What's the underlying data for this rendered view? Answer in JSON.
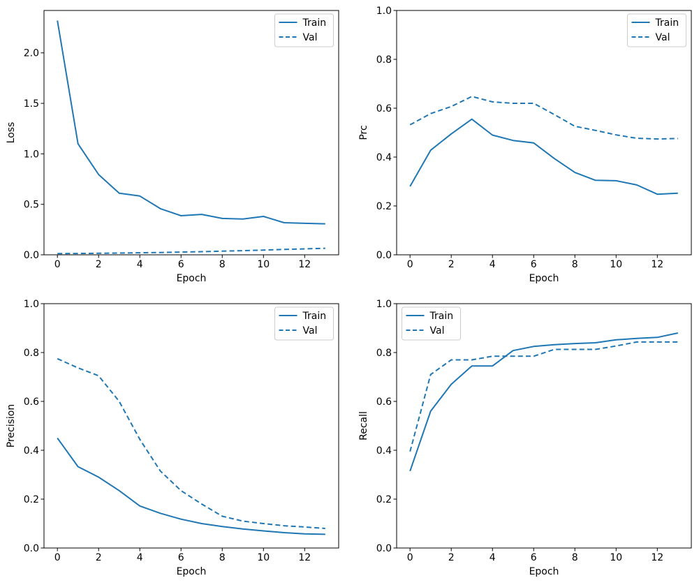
{
  "figure": {
    "background": "#ffffff",
    "text_color": "#000000",
    "accent_color": "#1f77b4",
    "legend_border_color": "#cccccc"
  },
  "chart_data": [
    {
      "id": "loss",
      "type": "line",
      "title": "",
      "xlabel": "Epoch",
      "ylabel": "Loss",
      "x": [
        0,
        1,
        2,
        3,
        4,
        5,
        6,
        7,
        8,
        9,
        10,
        11,
        12,
        13
      ],
      "series": [
        {
          "name": "Train",
          "style": "solid",
          "values": [
            2.32,
            1.1,
            0.795,
            0.61,
            0.582,
            0.457,
            0.387,
            0.4,
            0.36,
            0.355,
            0.38,
            0.318,
            0.312,
            0.307
          ]
        },
        {
          "name": "Val",
          "style": "dashed",
          "values": [
            0.012,
            0.013,
            0.015,
            0.017,
            0.02,
            0.023,
            0.027,
            0.031,
            0.036,
            0.041,
            0.047,
            0.053,
            0.059,
            0.065
          ]
        }
      ],
      "xlim": [
        -0.65,
        13.65
      ],
      "ylim": [
        0,
        2.42
      ],
      "xtick_values": [
        0,
        2,
        4,
        6,
        8,
        10,
        12
      ],
      "xtick_labels": [
        "0",
        "2",
        "4",
        "6",
        "8",
        "10",
        "12"
      ],
      "ytick_values": [
        0.0,
        0.5,
        1.0,
        1.5,
        2.0
      ],
      "ytick_labels": [
        "0.0",
        "0.5",
        "1.0",
        "1.5",
        "2.0"
      ],
      "grid": false,
      "legend_position": "top-right"
    },
    {
      "id": "prc",
      "type": "line",
      "title": "",
      "xlabel": "Epoch",
      "ylabel": "Prc",
      "x": [
        0,
        1,
        2,
        3,
        4,
        5,
        6,
        7,
        8,
        9,
        10,
        11,
        12,
        13
      ],
      "series": [
        {
          "name": "Train",
          "style": "solid",
          "values": [
            0.28,
            0.428,
            0.495,
            0.555,
            0.49,
            0.468,
            0.458,
            0.394,
            0.337,
            0.305,
            0.303,
            0.286,
            0.248,
            0.252
          ]
        },
        {
          "name": "Val",
          "style": "dashed",
          "values": [
            0.532,
            0.578,
            0.607,
            0.648,
            0.626,
            0.62,
            0.62,
            0.574,
            0.526,
            0.509,
            0.491,
            0.477,
            0.474,
            0.476
          ]
        }
      ],
      "xlim": [
        -0.65,
        13.65
      ],
      "ylim": [
        0,
        1.0
      ],
      "xtick_values": [
        0,
        2,
        4,
        6,
        8,
        10,
        12
      ],
      "xtick_labels": [
        "0",
        "2",
        "4",
        "6",
        "8",
        "10",
        "12"
      ],
      "ytick_values": [
        0.0,
        0.2,
        0.4,
        0.6,
        0.8,
        1.0
      ],
      "ytick_labels": [
        "0.0",
        "0.2",
        "0.4",
        "0.6",
        "0.8",
        "1.0"
      ],
      "grid": false,
      "legend_position": "top-right"
    },
    {
      "id": "precision",
      "type": "line",
      "title": "",
      "xlabel": "Epoch",
      "ylabel": "Precision",
      "x": [
        0,
        1,
        2,
        3,
        4,
        5,
        6,
        7,
        8,
        9,
        10,
        11,
        12,
        13
      ],
      "series": [
        {
          "name": "Train",
          "style": "solid",
          "values": [
            0.45,
            0.333,
            0.29,
            0.235,
            0.172,
            0.142,
            0.118,
            0.1,
            0.088,
            0.078,
            0.07,
            0.063,
            0.058,
            0.056
          ]
        },
        {
          "name": "Val",
          "style": "dashed",
          "values": [
            0.775,
            0.737,
            0.705,
            0.6,
            0.445,
            0.315,
            0.235,
            0.18,
            0.13,
            0.11,
            0.1,
            0.091,
            0.086,
            0.08
          ]
        }
      ],
      "xlim": [
        -0.65,
        13.65
      ],
      "ylim": [
        0,
        1.0
      ],
      "xtick_values": [
        0,
        2,
        4,
        6,
        8,
        10,
        12
      ],
      "xtick_labels": [
        "0",
        "2",
        "4",
        "6",
        "8",
        "10",
        "12"
      ],
      "ytick_values": [
        0.0,
        0.2,
        0.4,
        0.6,
        0.8,
        1.0
      ],
      "ytick_labels": [
        "0.0",
        "0.2",
        "0.4",
        "0.6",
        "0.8",
        "1.0"
      ],
      "grid": false,
      "legend_position": "top-right"
    },
    {
      "id": "recall",
      "type": "line",
      "title": "",
      "xlabel": "Epoch",
      "ylabel": "Recall",
      "x": [
        0,
        1,
        2,
        3,
        4,
        5,
        6,
        7,
        8,
        9,
        10,
        11,
        12,
        13
      ],
      "series": [
        {
          "name": "Train",
          "style": "solid",
          "values": [
            0.315,
            0.56,
            0.67,
            0.745,
            0.745,
            0.808,
            0.825,
            0.832,
            0.837,
            0.84,
            0.852,
            0.858,
            0.862,
            0.88
          ]
        },
        {
          "name": "Val",
          "style": "dashed",
          "values": [
            0.395,
            0.71,
            0.77,
            0.77,
            0.785,
            0.785,
            0.785,
            0.813,
            0.813,
            0.813,
            0.827,
            0.843,
            0.843,
            0.843
          ]
        }
      ],
      "xlim": [
        -0.65,
        13.65
      ],
      "ylim": [
        0,
        1.0
      ],
      "xtick_values": [
        0,
        2,
        4,
        6,
        8,
        10,
        12
      ],
      "xtick_labels": [
        "0",
        "2",
        "4",
        "6",
        "8",
        "10",
        "12"
      ],
      "ytick_values": [
        0.0,
        0.2,
        0.4,
        0.6,
        0.8,
        1.0
      ],
      "ytick_labels": [
        "0.0",
        "0.2",
        "0.4",
        "0.6",
        "0.8",
        "1.0"
      ],
      "grid": false,
      "legend_position": "top-left"
    }
  ]
}
